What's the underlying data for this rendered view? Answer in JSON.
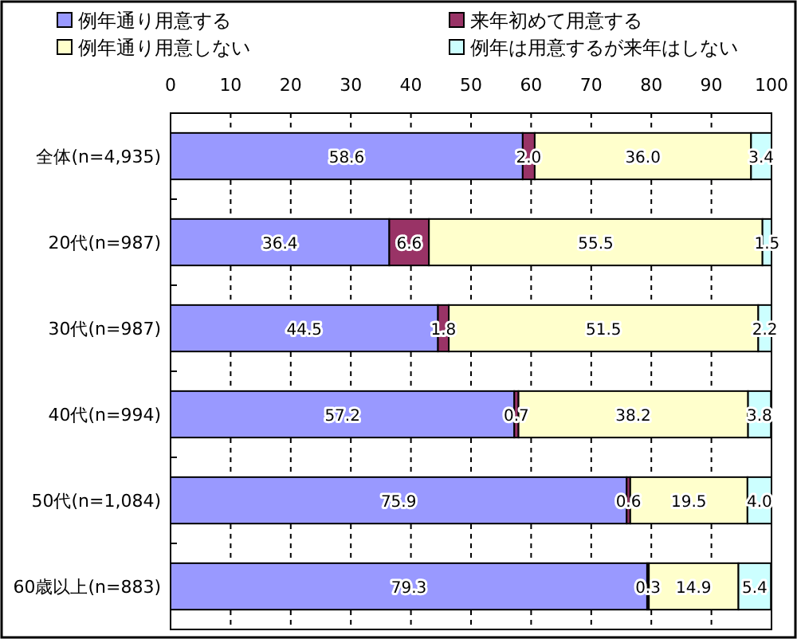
{
  "chart_data": {
    "type": "bar",
    "orientation": "horizontal",
    "stacked": true,
    "categories": [
      "全体(n=4,935)",
      "20代(n=987)",
      "30代(n=987)",
      "40代(n=994)",
      "50代(n=1,084)",
      "60歳以上(n=883)"
    ],
    "series": [
      {
        "name": "例年通り用意する",
        "color": "#9999ff",
        "values": [
          58.6,
          36.4,
          44.5,
          57.2,
          75.9,
          79.3
        ],
        "value_labels": [
          "58.6",
          "36.4",
          "44.5",
          "57.2",
          "75.9",
          "79.3"
        ]
      },
      {
        "name": "来年初めて用意する",
        "color": "#993366",
        "values": [
          2.0,
          6.6,
          1.8,
          0.7,
          0.6,
          0.3
        ],
        "value_labels": [
          "2.0",
          "6.6",
          "1.8",
          "0.7",
          "0.6",
          "0.3"
        ]
      },
      {
        "name": "例年通り用意しない",
        "color": "#ffffcc",
        "values": [
          36.0,
          55.5,
          51.5,
          38.2,
          19.5,
          14.9
        ],
        "value_labels": [
          "36.0",
          "55.5",
          "51.5",
          "38.2",
          "19.5",
          "14.9"
        ]
      },
      {
        "name": "例年は用意するが来年はしない",
        "color": "#ccffff",
        "values": [
          3.4,
          1.5,
          2.2,
          3.8,
          4.0,
          5.4
        ],
        "value_labels": [
          "3.4",
          "1.5",
          "2.2",
          "3.8",
          "4.0",
          "5.4"
        ]
      }
    ],
    "xlim": [
      0,
      100
    ],
    "xticks": [
      0,
      10,
      20,
      30,
      40,
      50,
      60,
      70,
      80,
      90,
      100
    ],
    "grid": "x",
    "legend": "top"
  }
}
